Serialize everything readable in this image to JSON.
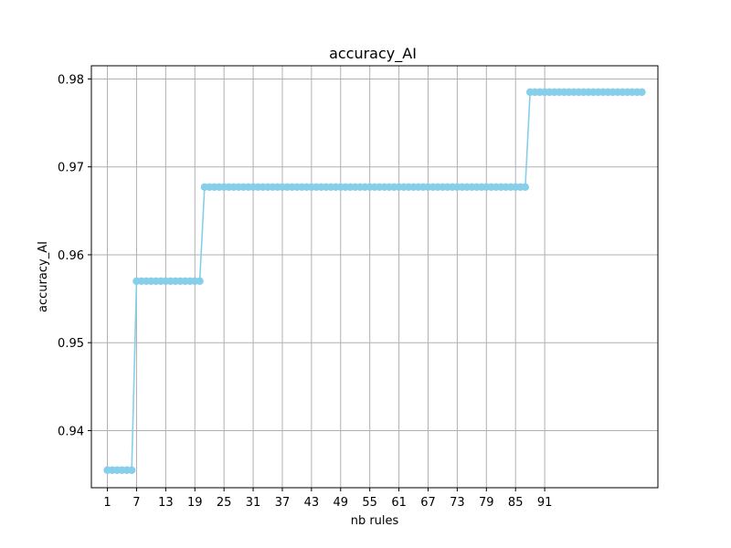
{
  "chart_data": {
    "type": "line",
    "title": "accuracy_AI",
    "xlabel": "nb rules",
    "ylabel": "accuracy_AI",
    "xlim": [
      -2.3,
      114.3
    ],
    "ylim": [
      0.9335,
      0.9815
    ],
    "x_ticks": [
      "1",
      "7",
      "13",
      "19",
      "25",
      "31",
      "37",
      "43",
      "49",
      "55",
      "61",
      "67",
      "73",
      "79",
      "85",
      "91"
    ],
    "y_ticks": [
      "0.94",
      "0.95",
      "0.96",
      "0.97",
      "0.98"
    ],
    "grid": true,
    "marker": "circle",
    "color": "#87ceeb",
    "segments": [
      {
        "x_start": 1,
        "x_end": 6,
        "y": 0.9355
      },
      {
        "x_start": 7,
        "x_end": 20,
        "y": 0.957
      },
      {
        "x_start": 21,
        "x_end": 87,
        "y": 0.9677
      },
      {
        "x_start": 88,
        "x_end": 111,
        "y": 0.9785
      }
    ]
  }
}
